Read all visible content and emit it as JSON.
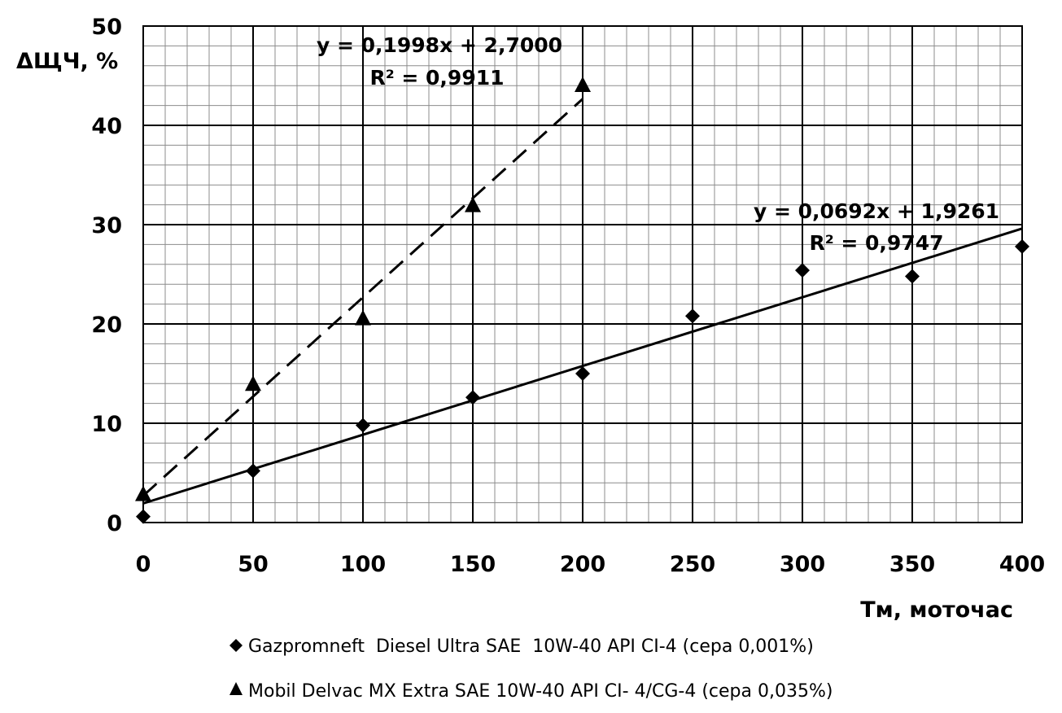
{
  "chart_data": {
    "type": "scatter",
    "title": "",
    "xlabel": "Тм, моточас",
    "ylabel": "ΔЩЧ, %",
    "xlim": [
      0,
      400
    ],
    "ylim": [
      0,
      50
    ],
    "xticks": [
      0,
      50,
      100,
      150,
      200,
      250,
      300,
      350,
      400
    ],
    "yticks": [
      0,
      10,
      20,
      30,
      40,
      50
    ],
    "grid": true,
    "minor_grid": true,
    "legend_position": "bottom",
    "series": [
      {
        "name": "Gazpromneft  Diesel Ultra SAE  10W-40 API CI-4 (сера 0,001%)",
        "marker": "diamond",
        "x": [
          0,
          50,
          100,
          150,
          200,
          250,
          300,
          350,
          400
        ],
        "y": [
          0.6,
          5.2,
          9.8,
          12.6,
          15.0,
          20.8,
          25.4,
          24.8,
          27.8
        ],
        "trendline": {
          "style": "solid",
          "slope": 0.0692,
          "intercept": 1.9261,
          "x_range": [
            0,
            400
          ],
          "equation": "y = 0,0692x + 1,9261",
          "r2": "R² = 0,9747"
        }
      },
      {
        "name": "Mobil Delvac MX Extra SAE 10W-40 API CI- 4/CG-4 (сера 0,035%)",
        "marker": "triangle",
        "x": [
          0,
          50,
          100,
          150,
          200
        ],
        "y": [
          2.9,
          14.0,
          20.6,
          32.0,
          44.1
        ],
        "trendline": {
          "style": "dashed",
          "slope": 0.1998,
          "intercept": 2.7,
          "x_range": [
            0,
            200
          ],
          "equation": "y = 0,1998x + 2,7000",
          "r2": "R² = 0,9911"
        }
      }
    ]
  }
}
